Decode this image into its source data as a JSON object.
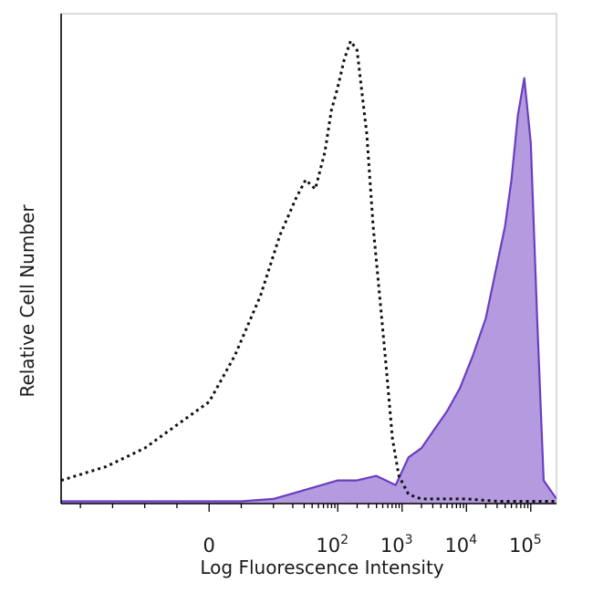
{
  "chart_data": {
    "type": "area",
    "xlabel": "Log Fluorescence Intensity",
    "ylabel": "Relative Cell Number",
    "x_scale": "biexponential",
    "xlim": [
      -2.3,
      5.4
    ],
    "ylim": [
      0,
      100
    ],
    "x_ticks": [
      {
        "value": 0,
        "base": "0",
        "exp": ""
      },
      {
        "value": 2,
        "base": "10",
        "exp": "2"
      },
      {
        "value": 3,
        "base": "10",
        "exp": "3"
      },
      {
        "value": 4,
        "base": "10",
        "exp": "4"
      },
      {
        "value": 5,
        "base": "10",
        "exp": "5"
      }
    ],
    "grid": false,
    "series": [
      {
        "style": "dotted-outline",
        "color": "#111111",
        "x": [
          -2.3,
          -1.6,
          -1.0,
          -0.5,
          0.0,
          0.4,
          0.8,
          1.1,
          1.35,
          1.5,
          1.65,
          1.8,
          1.9,
          2.0,
          2.1,
          2.2,
          2.3,
          2.4,
          2.45,
          2.55,
          2.65,
          2.75,
          2.85,
          2.95,
          3.1,
          3.3,
          3.6,
          4.0,
          4.5,
          5.0,
          5.4
        ],
        "y": [
          5,
          8,
          12,
          17,
          22,
          32,
          45,
          58,
          66,
          70,
          68,
          76,
          85,
          90,
          96,
          100,
          98,
          86,
          80,
          60,
          45,
          30,
          14,
          6,
          2,
          1,
          1,
          1,
          0.5,
          0.5,
          0.5
        ]
      },
      {
        "style": "filled",
        "color": "#6a3ec0",
        "fill": "#b49be0",
        "x": [
          -2.3,
          0.5,
          1.0,
          1.5,
          2.0,
          2.3,
          2.6,
          2.9,
          3.1,
          3.3,
          3.5,
          3.7,
          3.9,
          4.1,
          4.3,
          4.45,
          4.6,
          4.7,
          4.8,
          4.9,
          5.0,
          5.1,
          5.2,
          5.4
        ],
        "y": [
          0.5,
          0.5,
          1,
          3,
          5,
          5,
          6,
          4,
          10,
          12,
          16,
          20,
          25,
          32,
          40,
          50,
          60,
          70,
          84,
          92,
          78,
          40,
          5,
          1
        ]
      }
    ]
  }
}
